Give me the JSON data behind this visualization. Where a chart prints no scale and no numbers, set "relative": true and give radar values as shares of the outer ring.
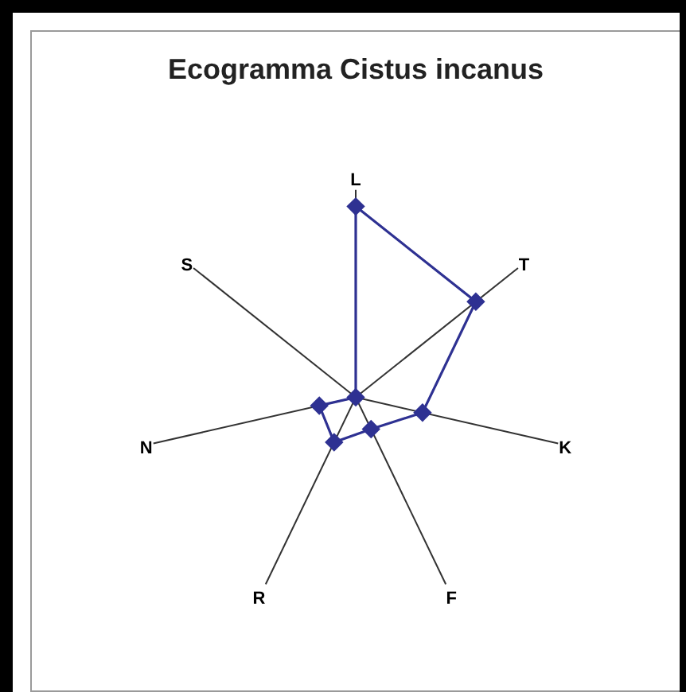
{
  "chart_data": {
    "type": "radar",
    "title": "Ecogramma Cistus incanus",
    "categories": [
      "L",
      "T",
      "K",
      "F",
      "R",
      "N",
      "S"
    ],
    "relative": true,
    "series": [
      {
        "color": "#2e3192",
        "values": [
          0.92,
          0.74,
          0.33,
          0.17,
          0.24,
          0.18,
          0
        ]
      }
    ],
    "grid": true,
    "marker": "diamond"
  }
}
